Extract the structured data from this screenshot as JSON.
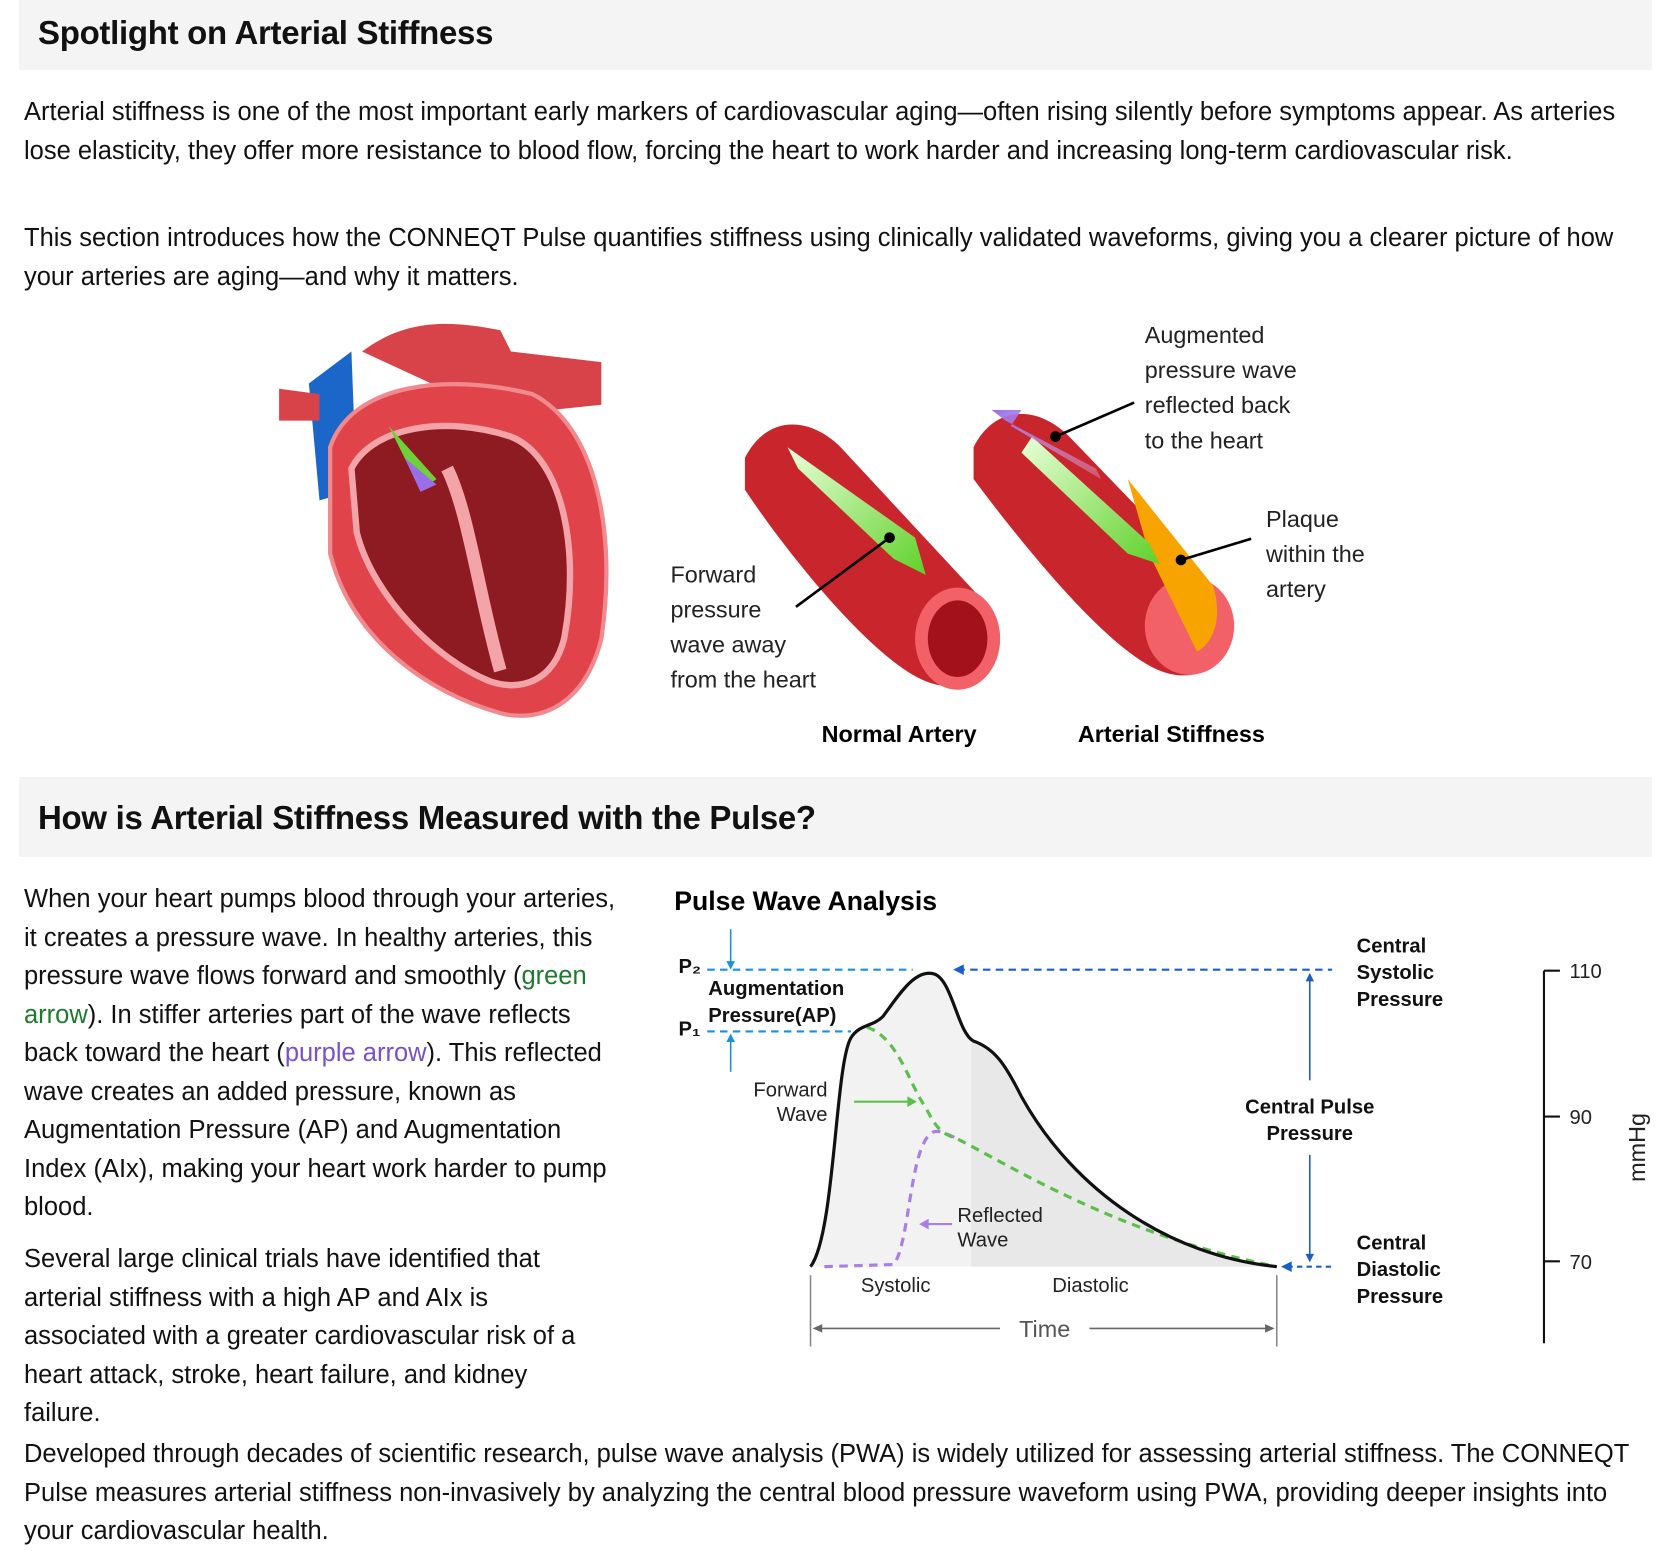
{
  "section1": {
    "title": "Spotlight on Arterial Stiffness",
    "paragraphs": [
      "Arterial stiffness is one of the most important early markers of cardiovascular aging—often rising silently before symptoms appear. As arteries lose elasticity, they offer more resistance to blood flow, forcing the heart to work harder and increasing long-term cardiovascular risk.",
      "This section introduces how the CONNEQT Pulse quantifies stiffness using clinically validated waveforms, giving you a clearer picture of how your arteries are aging—and why it matters."
    ],
    "illustration": {
      "forward_label": [
        "Forward",
        "pressure",
        "wave away",
        "from the heart"
      ],
      "augmented_label": [
        "Augmented",
        "pressure wave",
        "reflected back",
        "to the heart"
      ],
      "plaque_label": [
        "Plaque",
        "within the",
        "artery"
      ],
      "normal_caption": "Normal Artery",
      "stiff_caption": "Arterial Stiffness"
    }
  },
  "section2": {
    "title": "How is Arterial Stiffness Measured with the Pulse?",
    "para1_a": "When your heart pumps blood through your arteries, it creates a pressure wave. In healthy arteries, this pressure wave flows forward and smoothly (",
    "para1_green": "green arrow",
    "para1_b": "). In stiffer arteries part of the wave reflects back toward the heart (",
    "para1_purple": "purple arrow",
    "para1_c": "). This reflected wave creates an added pressure, known as Augmentation Pressure (AP) and Augmentation Index (AIx), making your heart work harder to pump blood.",
    "para2": "Several large clinical trials have identified that arterial stiffness with a high AP and AIx is associated with a greater cardiovascular risk of a heart attack, stroke, heart failure, and kidney failure.",
    "para3": "Developed through decades of scientific research, pulse wave analysis (PWA) is widely utilized for assessing arterial stiffness. The CONNEQT Pulse measures arterial stiffness non-invasively by analyzing the central blood pressure waveform using PWA, providing deeper insights into your cardiovascular health."
  },
  "pwa": {
    "title": "Pulse Wave Analysis",
    "p2": "P₂",
    "p1": "P₁",
    "ap_label": [
      "Augmentation",
      "Pressure(AP)"
    ],
    "forward_wave": [
      "Forward",
      "Wave"
    ],
    "reflected_wave": [
      "Reflected",
      "Wave"
    ],
    "systolic": "Systolic",
    "diastolic": "Diastolic",
    "time": "Time",
    "csp": [
      "Central",
      "Systolic",
      "Pressure"
    ],
    "cpp": [
      "Central Pulse",
      "Pressure"
    ],
    "cdp": [
      "Central",
      "Diastolic",
      "Pressure"
    ],
    "y_ticks": [
      "110",
      "90",
      "70"
    ],
    "y_unit": "mmHg",
    "colors": {
      "forward": "#5cbf4a",
      "reflected": "#a77fe6",
      "guides": "#1a73d9",
      "curve": "#111111"
    }
  }
}
